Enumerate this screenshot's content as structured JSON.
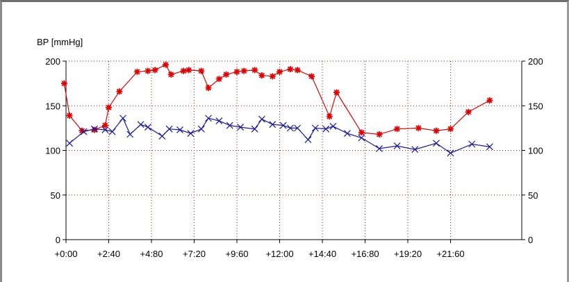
{
  "chart_data": {
    "type": "line",
    "ylabel": "BP [mmHg]",
    "ylim": [
      0,
      200
    ],
    "xlim": [
      0,
      25.6
    ],
    "grid": true,
    "x_ticks": [
      {
        "value": 0,
        "label": "+0:00"
      },
      {
        "value": 2.4,
        "label": "+2:40"
      },
      {
        "value": 4.8,
        "label": "+4:80"
      },
      {
        "value": 7.2,
        "label": "+7:20"
      },
      {
        "value": 9.6,
        "label": "+9:60"
      },
      {
        "value": 12.0,
        "label": "+12:00"
      },
      {
        "value": 14.4,
        "label": "+14:40"
      },
      {
        "value": 16.8,
        "label": "+16:80"
      },
      {
        "value": 19.2,
        "label": "+19:20"
      },
      {
        "value": 21.6,
        "label": "+21:60"
      }
    ],
    "y_ticks": [
      0,
      50,
      100,
      150,
      200
    ],
    "y_tick_labels_left": [
      "0",
      "50",
      "100",
      "150",
      "200"
    ],
    "y_tick_labels_right": [
      "0",
      "50",
      "100",
      "150",
      "200"
    ],
    "series": [
      {
        "color": "#e00000",
        "marker": "star",
        "points": [
          [
            -0.1,
            175
          ],
          [
            0.2,
            139
          ],
          [
            0.9,
            122
          ],
          [
            1.6,
            123
          ],
          [
            2.2,
            128
          ],
          [
            2.4,
            148
          ],
          [
            3.0,
            166
          ],
          [
            4.0,
            188
          ],
          [
            4.6,
            189
          ],
          [
            5.0,
            190
          ],
          [
            5.6,
            196
          ],
          [
            5.9,
            185
          ],
          [
            6.6,
            189
          ],
          [
            6.9,
            190
          ],
          [
            7.6,
            189
          ],
          [
            8.0,
            170
          ],
          [
            8.6,
            180
          ],
          [
            9.0,
            185
          ],
          [
            9.6,
            188
          ],
          [
            10.0,
            189
          ],
          [
            10.6,
            190
          ],
          [
            11.0,
            184
          ],
          [
            11.6,
            183
          ],
          [
            12.0,
            188
          ],
          [
            12.6,
            191
          ],
          [
            13.0,
            190
          ],
          [
            13.8,
            183
          ],
          [
            14.8,
            138
          ],
          [
            15.2,
            165
          ],
          [
            16.6,
            120
          ],
          [
            17.6,
            118
          ],
          [
            18.6,
            124
          ],
          [
            19.8,
            125
          ],
          [
            20.8,
            122
          ],
          [
            21.6,
            124
          ],
          [
            22.6,
            143
          ],
          [
            23.8,
            156
          ]
        ]
      },
      {
        "color": "#1818a0",
        "marker": "x",
        "points": [
          [
            0.2,
            108
          ],
          [
            1.0,
            121
          ],
          [
            1.6,
            124
          ],
          [
            2.2,
            123
          ],
          [
            2.6,
            121
          ],
          [
            3.2,
            136
          ],
          [
            3.6,
            118
          ],
          [
            4.2,
            129
          ],
          [
            4.6,
            126
          ],
          [
            5.4,
            116
          ],
          [
            5.8,
            124
          ],
          [
            6.4,
            123
          ],
          [
            7.0,
            119
          ],
          [
            7.6,
            124
          ],
          [
            8.0,
            136
          ],
          [
            8.6,
            133
          ],
          [
            9.2,
            128
          ],
          [
            9.8,
            126
          ],
          [
            10.6,
            124
          ],
          [
            11.0,
            135
          ],
          [
            11.6,
            129
          ],
          [
            12.2,
            128
          ],
          [
            12.6,
            125
          ],
          [
            13.0,
            125
          ],
          [
            13.6,
            112
          ],
          [
            14.0,
            125
          ],
          [
            14.6,
            124
          ],
          [
            15.0,
            127
          ],
          [
            15.8,
            119
          ],
          [
            16.6,
            114
          ],
          [
            17.6,
            102
          ],
          [
            18.6,
            105
          ],
          [
            19.6,
            101
          ],
          [
            20.8,
            108
          ],
          [
            21.6,
            97
          ],
          [
            22.8,
            107
          ],
          [
            23.8,
            104
          ]
        ]
      }
    ]
  }
}
